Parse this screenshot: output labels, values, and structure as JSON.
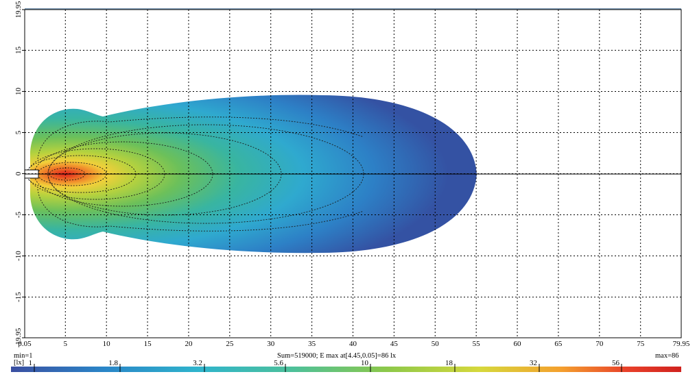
{
  "chart_data": {
    "type": "heatmap",
    "title": "",
    "x_ticks": [
      "0.05",
      "5",
      "10",
      "15",
      "20",
      "25",
      "30",
      "35",
      "40",
      "45",
      "50",
      "55",
      "60",
      "65",
      "70",
      "75",
      "79.95"
    ],
    "x_tick_values": [
      0.05,
      5,
      10,
      15,
      20,
      25,
      30,
      35,
      40,
      45,
      50,
      55,
      60,
      65,
      70,
      75,
      79.95
    ],
    "y_ticks": [
      "19.95",
      "15",
      "10",
      "5",
      "0",
      "-5",
      "-10",
      "-15",
      "-19.95"
    ],
    "y_tick_values": [
      19.95,
      15,
      10,
      5,
      0,
      -5,
      -10,
      -15,
      -19.95
    ],
    "xlim": [
      0.05,
      79.95
    ],
    "ylim": [
      -19.95,
      19.95
    ],
    "grid": true,
    "illuminance_min": 1,
    "illuminance_max": 86,
    "max_location": [
      4.45,
      0.05
    ],
    "isolines_lx": [
      1.8,
      3.2,
      5.6,
      10,
      18,
      32,
      56
    ],
    "color_scale": {
      "unit_label": "[lx]",
      "tick_labels": [
        "1",
        "1.8",
        "3.2",
        "5.6",
        "10",
        "18",
        "32",
        "56"
      ],
      "tick_values": [
        1,
        1.8,
        3.2,
        5.6,
        10,
        18,
        32,
        56
      ],
      "colors": [
        "#3b4fa1",
        "#2a86c8",
        "#2fb4cc",
        "#4dc09a",
        "#8cc84a",
        "#d6d83c",
        "#f4a02e",
        "#e8402a",
        "#d0221e"
      ]
    }
  },
  "status": {
    "min": "min=1",
    "sum": "Sum=519000; E max at[4.45,0.05]=86 lx",
    "max": "max=86",
    "unit": "[lx]"
  }
}
